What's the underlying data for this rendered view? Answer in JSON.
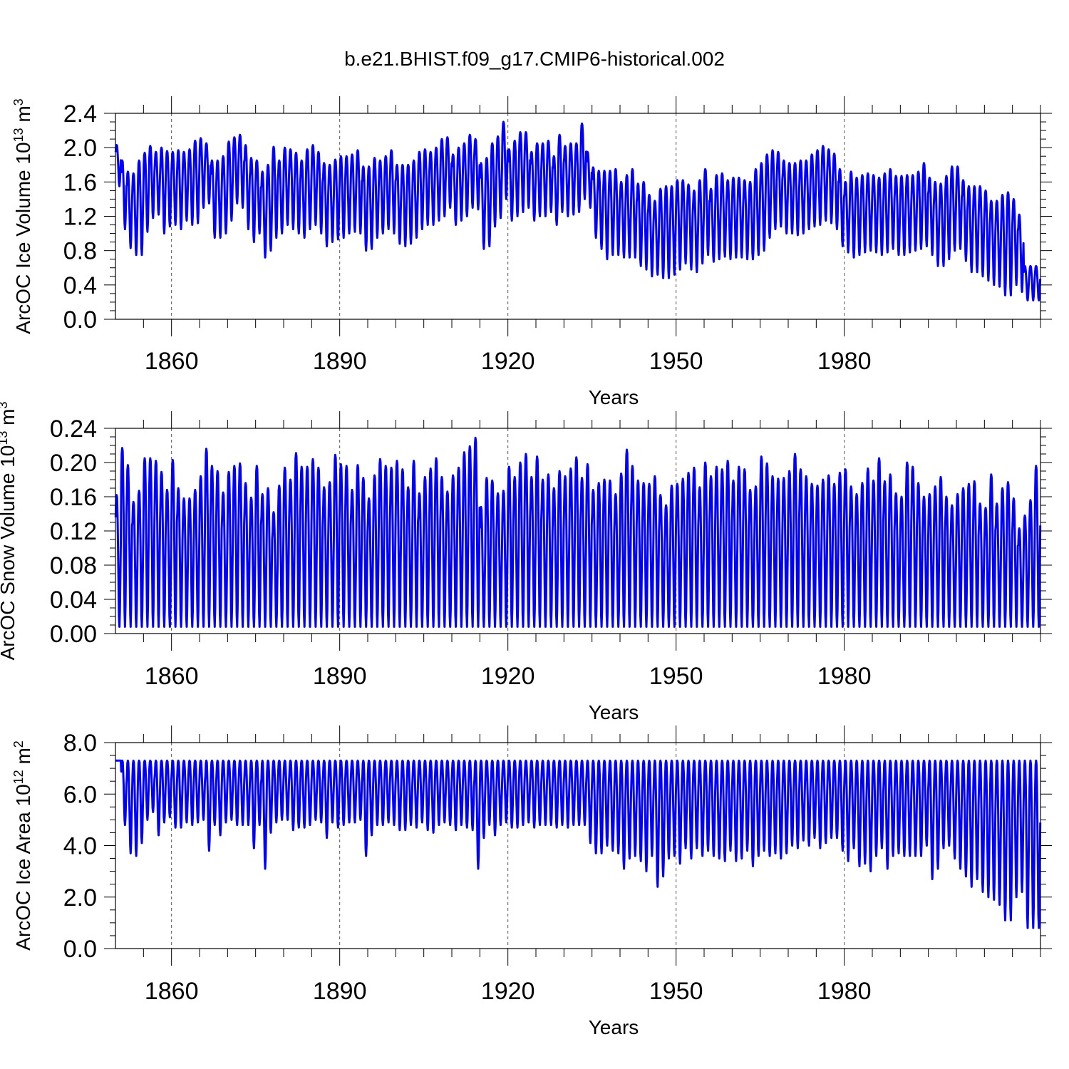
{
  "title": "b.e21.BHIST.f09_g17.CMIP6-historical.002",
  "colors": {
    "series": "#0000ff",
    "axis": "#000000",
    "grid": "#555555",
    "background": "#ffffff"
  },
  "chart_data": [
    {
      "type": "line",
      "ylabel_main": "ArcOC Ice Volume 10",
      "ylabel_exp": "13",
      "ylabel_unit": " m",
      "ylabel_unit_exp": "3",
      "xlabel": "Years",
      "xlim": [
        1850,
        2015
      ],
      "xticks": [
        1860,
        1890,
        1920,
        1950,
        1980
      ],
      "xgrid": true,
      "ylim": [
        0.0,
        2.4
      ],
      "yticks": [
        "0.0",
        "0.4",
        "0.8",
        "1.2",
        "1.6",
        "2.0",
        "2.4"
      ],
      "series": [
        {
          "x_start": 1850,
          "annual_max": [
            2.03,
            1.85,
            1.72,
            1.7,
            1.85,
            1.94,
            2.02,
            1.95,
            2.0,
            1.96,
            1.95,
            1.97,
            1.95,
            1.98,
            2.08,
            2.11,
            2.05,
            1.85,
            1.85,
            1.9,
            2.07,
            2.12,
            2.15,
            2.03,
            1.88,
            1.85,
            1.72,
            1.8,
            2.01,
            1.85,
            2.0,
            1.98,
            1.94,
            1.85,
            1.98,
            2.03,
            1.95,
            1.82,
            1.8,
            1.86,
            1.9,
            1.9,
            1.92,
            1.97,
            1.78,
            1.78,
            1.88,
            1.85,
            1.9,
            1.97,
            1.8,
            1.8,
            1.8,
            1.85,
            1.95,
            1.98,
            1.95,
            2.0,
            2.1,
            2.12,
            1.92,
            2.0,
            2.05,
            2.15,
            2.1,
            1.82,
            1.88,
            2.05,
            2.13,
            2.3,
            1.98,
            2.08,
            2.18,
            2.18,
            1.95,
            2.05,
            2.05,
            2.08,
            1.9,
            2.15,
            2.02,
            2.05,
            2.05,
            2.28,
            1.95,
            1.77,
            1.73,
            1.73,
            1.73,
            1.75,
            1.6,
            1.68,
            1.75,
            1.58,
            1.6,
            1.45,
            1.38,
            1.52,
            1.55,
            1.55,
            1.62,
            1.62,
            1.57,
            1.5,
            1.62,
            1.75,
            1.52,
            1.68,
            1.7,
            1.62,
            1.65,
            1.65,
            1.62,
            1.6,
            1.75,
            1.82,
            1.92,
            1.97,
            1.95,
            1.85,
            1.82,
            1.82,
            1.85,
            1.85,
            1.92,
            1.97,
            2.02,
            1.98,
            1.93,
            1.75,
            1.6,
            1.72,
            1.65,
            1.68,
            1.7,
            1.68,
            1.65,
            1.7,
            1.75,
            1.67,
            1.67,
            1.68,
            1.68,
            1.72,
            1.82,
            1.65,
            1.6,
            1.58,
            1.67,
            1.78,
            1.78,
            1.62,
            1.55,
            1.55,
            1.55,
            1.5,
            1.38,
            1.38,
            1.45,
            1.48,
            1.4,
            1.22,
            0.62
          ],
          "annual_min": [
            1.55,
            1.05,
            0.83,
            0.75,
            0.75,
            1.02,
            1.18,
            1.22,
            1.0,
            1.08,
            1.1,
            1.05,
            1.15,
            1.1,
            1.12,
            1.3,
            1.35,
            0.95,
            0.95,
            1.0,
            1.15,
            1.35,
            1.3,
            1.05,
            0.9,
            1.0,
            0.72,
            0.8,
            0.95,
            1.0,
            1.1,
            1.05,
            1.0,
            0.95,
            1.05,
            1.1,
            1.0,
            0.85,
            0.9,
            0.93,
            0.95,
            1.0,
            1.02,
            1.0,
            0.8,
            0.82,
            0.95,
            1.0,
            1.05,
            1.0,
            0.88,
            0.85,
            0.88,
            0.95,
            1.05,
            1.1,
            1.1,
            1.15,
            1.2,
            1.3,
            1.1,
            1.15,
            1.2,
            1.3,
            1.28,
            0.82,
            0.85,
            1.08,
            1.18,
            1.4,
            1.15,
            1.2,
            1.25,
            1.3,
            1.15,
            1.2,
            1.2,
            1.25,
            1.1,
            1.25,
            1.2,
            1.22,
            1.25,
            1.4,
            1.3,
            0.95,
            0.82,
            0.7,
            0.75,
            0.75,
            0.72,
            0.72,
            0.72,
            0.62,
            0.58,
            0.5,
            0.52,
            0.48,
            0.48,
            0.52,
            0.58,
            0.65,
            0.58,
            0.55,
            0.65,
            0.75,
            0.67,
            0.7,
            0.73,
            0.7,
            0.72,
            0.72,
            0.7,
            0.7,
            0.75,
            0.8,
            0.95,
            1.05,
            1.08,
            1.0,
            1.0,
            0.98,
            1.0,
            1.05,
            1.08,
            1.1,
            1.15,
            1.12,
            1.05,
            0.85,
            0.78,
            0.72,
            0.75,
            0.78,
            0.8,
            0.78,
            0.75,
            0.78,
            0.82,
            0.75,
            0.75,
            0.78,
            0.8,
            0.82,
            0.85,
            0.75,
            0.62,
            0.62,
            0.7,
            0.8,
            0.82,
            0.68,
            0.55,
            0.55,
            0.5,
            0.45,
            0.4,
            0.38,
            0.28,
            0.28,
            0.4,
            0.32,
            0.22
          ]
        }
      ]
    },
    {
      "type": "line",
      "ylabel_main": "ArcOC Snow Volume 10",
      "ylabel_exp": "13",
      "ylabel_unit": " m",
      "ylabel_unit_exp": "3",
      "xlabel": "Years",
      "xlim": [
        1850,
        2015
      ],
      "xticks": [
        1860,
        1890,
        1920,
        1950,
        1980
      ],
      "xgrid": true,
      "ylim": [
        0.0,
        0.24
      ],
      "yticks": [
        "0.00",
        "0.04",
        "0.08",
        "0.12",
        "0.16",
        "0.20",
        "0.24"
      ],
      "series": [
        {
          "x_start": 1850,
          "annual_max": [
            0.162,
            0.217,
            0.197,
            0.154,
            0.167,
            0.205,
            0.205,
            0.202,
            0.189,
            0.168,
            0.203,
            0.17,
            0.158,
            0.158,
            0.168,
            0.184,
            0.216,
            0.196,
            0.19,
            0.165,
            0.189,
            0.196,
            0.199,
            0.176,
            0.159,
            0.196,
            0.163,
            0.17,
            0.142,
            0.173,
            0.194,
            0.18,
            0.211,
            0.195,
            0.195,
            0.204,
            0.194,
            0.171,
            0.177,
            0.209,
            0.198,
            0.196,
            0.168,
            0.197,
            0.182,
            0.158,
            0.185,
            0.204,
            0.196,
            0.194,
            0.202,
            0.192,
            0.171,
            0.202,
            0.164,
            0.183,
            0.193,
            0.205,
            0.183,
            0.166,
            0.185,
            0.194,
            0.212,
            0.219,
            0.229,
            0.148,
            0.182,
            0.179,
            0.164,
            0.167,
            0.195,
            0.183,
            0.2,
            0.21,
            0.183,
            0.207,
            0.18,
            0.186,
            0.17,
            0.19,
            0.184,
            0.193,
            0.206,
            0.182,
            0.198,
            0.168,
            0.176,
            0.18,
            0.179,
            0.163,
            0.187,
            0.215,
            0.196,
            0.179,
            0.176,
            0.175,
            0.184,
            0.162,
            0.15,
            0.173,
            0.175,
            0.181,
            0.188,
            0.194,
            0.171,
            0.2,
            0.184,
            0.195,
            0.192,
            0.202,
            0.179,
            0.195,
            0.192,
            0.168,
            0.172,
            0.207,
            0.199,
            0.184,
            0.181,
            0.182,
            0.19,
            0.21,
            0.192,
            0.184,
            0.175,
            0.173,
            0.18,
            0.185,
            0.175,
            0.188,
            0.192,
            0.172,
            0.163,
            0.176,
            0.193,
            0.179,
            0.205,
            0.178,
            0.186,
            0.164,
            0.16,
            0.2,
            0.195,
            0.176,
            0.16,
            0.163,
            0.172,
            0.183,
            0.16,
            0.15,
            0.163,
            0.17,
            0.175,
            0.178,
            0.152,
            0.147,
            0.186,
            0.152,
            0.17,
            0.177,
            0.158,
            0.123,
            0.138,
            0.156,
            0.196,
            0.042
          ],
          "annual_min": [
            0.008
          ]
        }
      ]
    },
    {
      "type": "line",
      "ylabel_main": "ArcOC Ice Area 10",
      "ylabel_exp": "12",
      "ylabel_unit": " m",
      "ylabel_unit_exp": "2",
      "xlabel": "Years",
      "xlim": [
        1850,
        2015
      ],
      "xticks": [
        1860,
        1890,
        1920,
        1950,
        1980
      ],
      "xgrid": true,
      "ylim": [
        0.0,
        8.0
      ],
      "yticks": [
        "0.0",
        "2.0",
        "4.0",
        "6.0",
        "8.0"
      ],
      "series": [
        {
          "x_start": 1850,
          "annual_max": [
            7.3
          ],
          "annual_min": [
            7.3,
            4.8,
            3.7,
            3.6,
            4.1,
            5.0,
            5.3,
            4.4,
            4.9,
            5.1,
            4.7,
            4.7,
            4.9,
            4.8,
            4.9,
            5.0,
            3.8,
            4.8,
            4.4,
            4.9,
            5.0,
            4.8,
            4.8,
            4.8,
            3.9,
            4.8,
            3.1,
            4.5,
            4.9,
            5.0,
            5.0,
            4.6,
            4.7,
            4.7,
            4.8,
            5.0,
            4.9,
            4.3,
            4.9,
            4.7,
            4.8,
            4.9,
            4.9,
            5.0,
            3.6,
            4.4,
            4.8,
            4.8,
            4.9,
            4.8,
            4.6,
            4.6,
            4.8,
            4.7,
            4.9,
            4.6,
            4.5,
            4.8,
            4.9,
            4.8,
            4.6,
            4.8,
            4.7,
            4.6,
            3.1,
            4.3,
            4.8,
            4.4,
            4.8,
            4.9,
            4.7,
            4.7,
            4.8,
            4.9,
            4.7,
            4.8,
            4.8,
            4.8,
            4.7,
            4.8,
            4.7,
            4.8,
            4.8,
            4.8,
            4.1,
            3.7,
            3.7,
            4.0,
            3.8,
            3.7,
            3.1,
            3.5,
            3.6,
            3.4,
            3.0,
            3.6,
            2.4,
            2.8,
            3.5,
            3.6,
            3.3,
            3.9,
            3.5,
            3.9,
            3.6,
            3.8,
            3.6,
            3.5,
            3.4,
            3.8,
            3.4,
            3.5,
            3.8,
            3.2,
            3.6,
            3.8,
            3.6,
            3.7,
            3.5,
            3.7,
            4.0,
            3.9,
            4.2,
            4.0,
            4.3,
            3.9,
            4.1,
            4.3,
            4.3,
            3.8,
            3.4,
            3.9,
            3.2,
            3.3,
            3.0,
            3.6,
            3.9,
            3.1,
            3.6,
            3.7,
            3.6,
            3.6,
            3.6,
            3.6,
            4.0,
            2.7,
            3.1,
            3.9,
            4.0,
            3.5,
            3.1,
            2.8,
            2.4,
            2.7,
            2.2,
            2.0,
            1.9,
            1.7,
            1.1,
            1.1,
            2.0,
            2.2,
            0.8
          ]
        }
      ]
    }
  ]
}
